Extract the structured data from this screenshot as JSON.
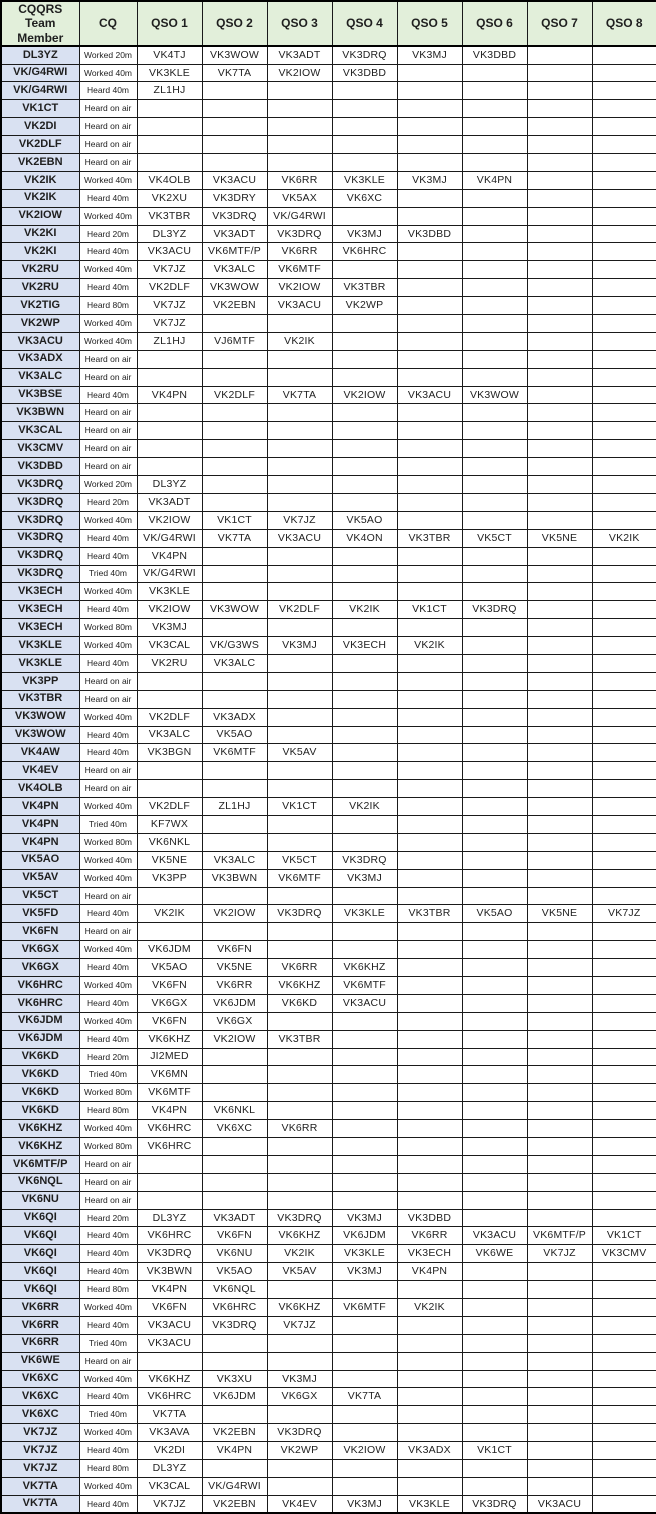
{
  "table": {
    "columns": [
      "CQQRS Team Member",
      "CQ",
      "QSO 1",
      "QSO 2",
      "QSO 3",
      "QSO 4",
      "QSO 5",
      "QSO 6",
      "QSO 7",
      "QSO 8"
    ],
    "rows": [
      {
        "member": "DL3YZ",
        "cq": "Worked 20m",
        "qsos": [
          "VK4TJ",
          "VK3WOW",
          "VK3ADT",
          "VK3DRQ",
          "VK3MJ",
          "VK3DBD"
        ]
      },
      {
        "member": "VK/G4RWI",
        "cq": "Worked 40m",
        "qsos": [
          "VK3KLE",
          "VK7TA",
          "VK2IOW",
          "VK3DBD"
        ]
      },
      {
        "member": "VK/G4RWI",
        "cq": "Heard 40m",
        "qsos": [
          "ZL1HJ"
        ]
      },
      {
        "member": "VK1CT",
        "cq": "Heard on air",
        "qsos": []
      },
      {
        "member": "VK2DI",
        "cq": "Heard on air",
        "qsos": []
      },
      {
        "member": "VK2DLF",
        "cq": "Heard on air",
        "qsos": []
      },
      {
        "member": "VK2EBN",
        "cq": "Heard on air",
        "qsos": []
      },
      {
        "member": "VK2IK",
        "cq": "Worked 40m",
        "qsos": [
          "VK4OLB",
          "VK3ACU",
          "VK6RR",
          "VK3KLE",
          "VK3MJ",
          "VK4PN"
        ]
      },
      {
        "member": "VK2IK",
        "cq": "Heard 40m",
        "qsos": [
          "VK2XU",
          "VK3DRY",
          "VK5AX",
          "VK6XC"
        ]
      },
      {
        "member": "VK2IOW",
        "cq": "Worked 40m",
        "qsos": [
          "VK3TBR",
          "VK3DRQ",
          "VK/G4RWI"
        ]
      },
      {
        "member": "VK2KI",
        "cq": "Heard 20m",
        "qsos": [
          "DL3YZ",
          "VK3ADT",
          "VK3DRQ",
          "VK3MJ",
          "VK3DBD"
        ]
      },
      {
        "member": "VK2KI",
        "cq": "Heard 40m",
        "qsos": [
          "VK3ACU",
          "VK6MTF/P",
          "VK6RR",
          "VK6HRC"
        ]
      },
      {
        "member": "VK2RU",
        "cq": "Worked 40m",
        "qsos": [
          "VK7JZ",
          "VK3ALC",
          "VK6MTF"
        ]
      },
      {
        "member": "VK2RU",
        "cq": "Heard 40m",
        "qsos": [
          "VK2DLF",
          "VK3WOW",
          "VK2IOW",
          "VK3TBR"
        ]
      },
      {
        "member": "VK2TIG",
        "cq": "Heard 80m",
        "qsos": [
          "VK7JZ",
          "VK2EBN",
          "VK3ACU",
          "VK2WP"
        ]
      },
      {
        "member": "VK2WP",
        "cq": "Worked 40m",
        "qsos": [
          "VK7JZ"
        ]
      },
      {
        "member": "VK3ACU",
        "cq": "Worked 40m",
        "qsos": [
          "ZL1HJ",
          "VJ6MTF",
          "VK2IK"
        ]
      },
      {
        "member": "VK3ADX",
        "cq": "Heard on air",
        "qsos": []
      },
      {
        "member": "VK3ALC",
        "cq": "Heard on air",
        "qsos": []
      },
      {
        "member": "VK3BSE",
        "cq": "Heard 40m",
        "qsos": [
          "VK4PN",
          "VK2DLF",
          "VK7TA",
          "VK2IOW",
          "VK3ACU",
          "VK3WOW"
        ]
      },
      {
        "member": "VK3BWN",
        "cq": "Heard on air",
        "qsos": []
      },
      {
        "member": "VK3CAL",
        "cq": "Heard on air",
        "qsos": []
      },
      {
        "member": "VK3CMV",
        "cq": "Heard on air",
        "qsos": []
      },
      {
        "member": "VK3DBD",
        "cq": "Heard on air",
        "qsos": []
      },
      {
        "member": "VK3DRQ",
        "cq": "Worked 20m",
        "qsos": [
          "DL3YZ"
        ]
      },
      {
        "member": "VK3DRQ",
        "cq": "Heard 20m",
        "qsos": [
          "VK3ADT"
        ]
      },
      {
        "member": "VK3DRQ",
        "cq": "Worked 40m",
        "qsos": [
          "VK2IOW",
          "VK1CT",
          "VK7JZ",
          "VK5AO"
        ]
      },
      {
        "member": "VK3DRQ",
        "cq": "Heard 40m",
        "qsos": [
          "VK/G4RWI",
          "VK7TA",
          "VK3ACU",
          "VK4ON",
          "VK3TBR",
          "VK5CT",
          "VK5NE",
          "VK2IK"
        ]
      },
      {
        "member": "VK3DRQ",
        "cq": "Heard 40m",
        "qsos": [
          "VK4PN"
        ]
      },
      {
        "member": "VK3DRQ",
        "cq": "Tried 40m",
        "qsos": [
          "VK/G4RWI"
        ]
      },
      {
        "member": "VK3ECH",
        "cq": "Worked 40m",
        "qsos": [
          "VK3KLE"
        ]
      },
      {
        "member": "VK3ECH",
        "cq": "Heard 40m",
        "qsos": [
          "VK2IOW",
          "VK3WOW",
          "VK2DLF",
          "VK2IK",
          "VK1CT",
          "VK3DRQ"
        ]
      },
      {
        "member": "VK3ECH",
        "cq": "Worked 80m",
        "qsos": [
          "VK3MJ"
        ]
      },
      {
        "member": "VK3KLE",
        "cq": "Worked 40m",
        "qsos": [
          "VK3CAL",
          "VK/G3WS",
          "VK3MJ",
          "VK3ECH",
          "VK2IK"
        ]
      },
      {
        "member": "VK3KLE",
        "cq": "Heard 40m",
        "qsos": [
          "VK2RU",
          "VK3ALC"
        ]
      },
      {
        "member": "VK3PP",
        "cq": "Heard on air",
        "qsos": []
      },
      {
        "member": "VK3TBR",
        "cq": "Heard on air",
        "qsos": []
      },
      {
        "member": "VK3WOW",
        "cq": "Worked 40m",
        "qsos": [
          "VK2DLF",
          "VK3ADX"
        ]
      },
      {
        "member": "VK3WOW",
        "cq": "Heard 40m",
        "qsos": [
          "VK3ALC",
          "VK5AO"
        ]
      },
      {
        "member": "VK4AW",
        "cq": "Heard 40m",
        "qsos": [
          "VK3BGN",
          "VK6MTF",
          "VK5AV"
        ]
      },
      {
        "member": "VK4EV",
        "cq": "Heard on air",
        "qsos": []
      },
      {
        "member": "VK4OLB",
        "cq": "Heard on air",
        "qsos": []
      },
      {
        "member": "VK4PN",
        "cq": "Worked 40m",
        "qsos": [
          "VK2DLF",
          "ZL1HJ",
          "VK1CT",
          "VK2IK"
        ]
      },
      {
        "member": "VK4PN",
        "cq": "Tried 40m",
        "qsos": [
          "KF7WX"
        ]
      },
      {
        "member": "VK4PN",
        "cq": "Worked 80m",
        "qsos": [
          "VK6NKL"
        ]
      },
      {
        "member": "VK5AO",
        "cq": "Worked 40m",
        "qsos": [
          "VK5NE",
          "VK3ALC",
          "VK5CT",
          "VK3DRQ"
        ]
      },
      {
        "member": "VK5AV",
        "cq": "Worked 40m",
        "qsos": [
          "VK3PP",
          "VK3BWN",
          "VK6MTF",
          "VK3MJ"
        ]
      },
      {
        "member": "VK5CT",
        "cq": "Heard on air",
        "qsos": []
      },
      {
        "member": "VK5FD",
        "cq": "Heard 40m",
        "qsos": [
          "VK2IK",
          "VK2IOW",
          "VK3DRQ",
          "VK3KLE",
          "VK3TBR",
          "VK5AO",
          "VK5NE",
          "VK7JZ"
        ]
      },
      {
        "member": "VK6FN",
        "cq": "Heard on air",
        "qsos": []
      },
      {
        "member": "VK6GX",
        "cq": "Worked 40m",
        "qsos": [
          "VK6JDM",
          "VK6FN"
        ]
      },
      {
        "member": "VK6GX",
        "cq": "Heard 40m",
        "qsos": [
          "VK5AO",
          "VK5NE",
          "VK6RR",
          "VK6KHZ"
        ]
      },
      {
        "member": "VK6HRC",
        "cq": "Worked 40m",
        "qsos": [
          "VK6FN",
          "VK6RR",
          "VK6KHZ",
          "VK6MTF"
        ]
      },
      {
        "member": "VK6HRC",
        "cq": "Heard 40m",
        "qsos": [
          "VK6GX",
          "VK6JDM",
          "VK6KD",
          "VK3ACU"
        ]
      },
      {
        "member": "VK6JDM",
        "cq": "Worked 40m",
        "qsos": [
          "VK6FN",
          "VK6GX"
        ]
      },
      {
        "member": "VK6JDM",
        "cq": "Heard 40m",
        "qsos": [
          "VK6KHZ",
          "VK2IOW",
          "VK3TBR"
        ]
      },
      {
        "member": "VK6KD",
        "cq": "Heard 20m",
        "qsos": [
          "JI2MED"
        ]
      },
      {
        "member": "VK6KD",
        "cq": "Tried 40m",
        "qsos": [
          "VK6MN"
        ]
      },
      {
        "member": "VK6KD",
        "cq": "Worked 80m",
        "qsos": [
          "VK6MTF"
        ]
      },
      {
        "member": "VK6KD",
        "cq": "Heard 80m",
        "qsos": [
          "VK4PN",
          "VK6NKL"
        ]
      },
      {
        "member": "VK6KHZ",
        "cq": "Worked 40m",
        "qsos": [
          "VK6HRC",
          "VK6XC",
          "VK6RR"
        ]
      },
      {
        "member": "VK6KHZ",
        "cq": "Worked 80m",
        "qsos": [
          "VK6HRC"
        ]
      },
      {
        "member": "VK6MTF/P",
        "cq": "Heard on air",
        "qsos": []
      },
      {
        "member": "VK6NQL",
        "cq": "Heard on air",
        "qsos": []
      },
      {
        "member": "VK6NU",
        "cq": "Heard on air",
        "qsos": []
      },
      {
        "member": "VK6QI",
        "cq": "Heard 20m",
        "qsos": [
          "DL3YZ",
          "VK3ADT",
          "VK3DRQ",
          "VK3MJ",
          "VK3DBD"
        ]
      },
      {
        "member": "VK6QI",
        "cq": "Heard 40m",
        "qsos": [
          "VK6HRC",
          "VK6FN",
          "VK6KHZ",
          "VK6JDM",
          "VK6RR",
          "VK3ACU",
          "VK6MTF/P",
          "VK1CT"
        ]
      },
      {
        "member": "VK6QI",
        "cq": "Heard 40m",
        "qsos": [
          "VK3DRQ",
          "VK6NU",
          "VK2IK",
          "VK3KLE",
          "VK3ECH",
          "VK6WE",
          "VK7JZ",
          "VK3CMV"
        ]
      },
      {
        "member": "VK6QI",
        "cq": "Heard 40m",
        "qsos": [
          "VK3BWN",
          "VK5AO",
          "VK5AV",
          "VK3MJ",
          "VK4PN"
        ]
      },
      {
        "member": "VK6QI",
        "cq": "Heard 80m",
        "qsos": [
          "VK4PN",
          "VK6NQL"
        ]
      },
      {
        "member": "VK6RR",
        "cq": "Worked 40m",
        "qsos": [
          "VK6FN",
          "VK6HRC",
          "VK6KHZ",
          "VK6MTF",
          "VK2IK"
        ]
      },
      {
        "member": "VK6RR",
        "cq": "Heard 40m",
        "qsos": [
          "VK3ACU",
          "VK3DRQ",
          "VK7JZ"
        ]
      },
      {
        "member": "VK6RR",
        "cq": "Tried 40m",
        "qsos": [
          "VK3ACU"
        ]
      },
      {
        "member": "VK6WE",
        "cq": "Heard on air",
        "qsos": []
      },
      {
        "member": "VK6XC",
        "cq": "Worked 40m",
        "qsos": [
          "VK6KHZ",
          "VK3XU",
          "VK3MJ"
        ]
      },
      {
        "member": "VK6XC",
        "cq": "Heard 40m",
        "qsos": [
          "VK6HRC",
          "VK6JDM",
          "VK6GX",
          "VK7TA"
        ]
      },
      {
        "member": "VK6XC",
        "cq": "Tried 40m",
        "qsos": [
          "VK7TA"
        ]
      },
      {
        "member": "VK7JZ",
        "cq": "Worked 40m",
        "qsos": [
          "VK3AVA",
          "VK2EBN",
          "VK3DRQ"
        ]
      },
      {
        "member": "VK7JZ",
        "cq": "Heard 40m",
        "qsos": [
          "VK2DI",
          "VK4PN",
          "VK2WP",
          "VK2IOW",
          "VK3ADX",
          "VK1CT"
        ]
      },
      {
        "member": "VK7JZ",
        "cq": "Heard 80m",
        "qsos": [
          "DL3YZ"
        ]
      },
      {
        "member": "VK7TA",
        "cq": "Worked 40m",
        "qsos": [
          "VK3CAL",
          "VK/G4RWI"
        ]
      },
      {
        "member": "VK7TA",
        "cq": "Heard 40m",
        "qsos": [
          "VK7JZ",
          "VK2EBN",
          "VK4EV",
          "VK3MJ",
          "VK3KLE",
          "VK3DRQ",
          "VK3ACU"
        ]
      }
    ]
  },
  "colors": {
    "header_bg": "#e2efda",
    "member_col_bg": "#d9e1f2",
    "border": "#1a1a1a",
    "text": "#1f1f1f"
  }
}
